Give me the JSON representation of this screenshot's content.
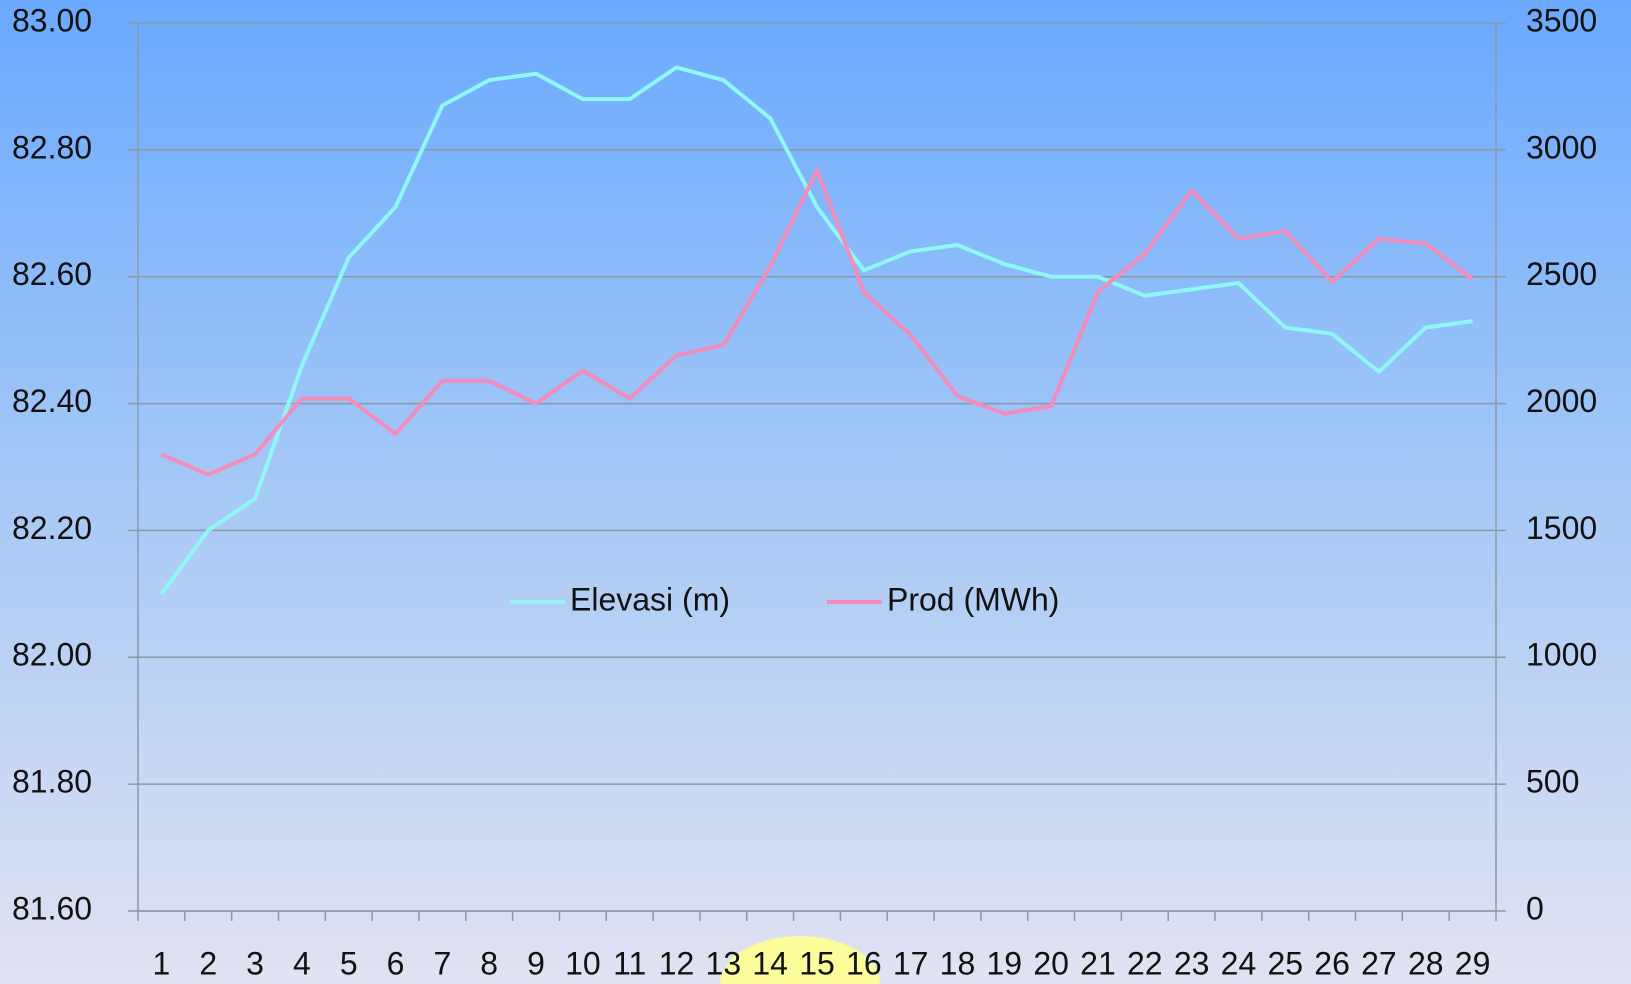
{
  "chart_data": {
    "type": "line",
    "categories": [
      "1",
      "2",
      "3",
      "4",
      "5",
      "6",
      "7",
      "8",
      "9",
      "10",
      "11",
      "12",
      "13",
      "14",
      "15",
      "16",
      "17",
      "18",
      "19",
      "20",
      "21",
      "22",
      "23",
      "24",
      "25",
      "26",
      "27",
      "28",
      "29"
    ],
    "series": [
      {
        "name": "Elevasi (m)",
        "color": "#8ff7f4",
        "values": [
          82.1,
          82.2,
          82.25,
          82.46,
          82.63,
          82.71,
          82.87,
          82.91,
          82.92,
          82.88,
          82.88,
          82.93,
          82.91,
          82.85,
          82.71,
          82.61,
          82.64,
          82.65,
          82.62,
          82.6,
          82.6,
          82.57,
          82.58,
          82.59,
          82.52,
          82.51,
          82.45,
          82.52,
          82.53
        ]
      },
      {
        "name": "Prod (MWh)",
        "color": "#f28dbb",
        "axis": "y2",
        "values": [
          1800,
          1720,
          1800,
          2020,
          2020,
          1880,
          2090,
          2090,
          2000,
          2130,
          2020,
          2190,
          2230,
          2540,
          2920,
          2440,
          2270,
          2030,
          1960,
          1990,
          2440,
          2590,
          2840,
          2650,
          2680,
          2480,
          2650,
          2630,
          2490
        ]
      }
    ],
    "ylim": [
      81.6,
      83.0
    ],
    "yticks": [
      {
        "value": 81.6,
        "label": "81.60"
      },
      {
        "value": 81.8,
        "label": "81.80"
      },
      {
        "value": 82.0,
        "label": "82.00"
      },
      {
        "value": 82.2,
        "label": "82.20"
      },
      {
        "value": 82.4,
        "label": "82.40"
      },
      {
        "value": 82.6,
        "label": "82.60"
      },
      {
        "value": 82.8,
        "label": "82.80"
      },
      {
        "value": 83.0,
        "label": "83.00"
      }
    ],
    "y2lim": [
      0,
      3500
    ],
    "y2ticks": [
      0,
      500,
      1000,
      1500,
      2000,
      2500,
      3000,
      3500
    ],
    "grid": true,
    "legend": "center"
  }
}
